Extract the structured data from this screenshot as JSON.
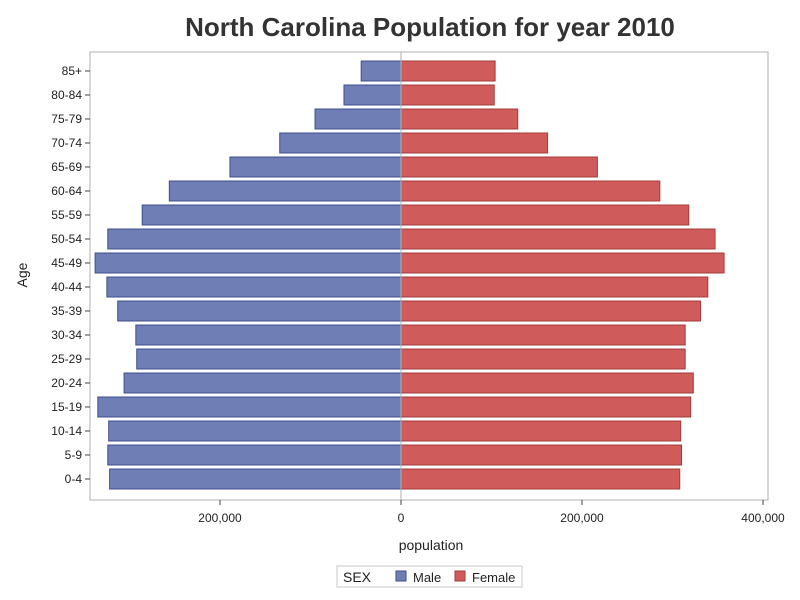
{
  "chart_data": {
    "type": "bar",
    "orientation": "horizontal-butterfly",
    "title": "North Carolina Population for year 2010",
    "xlabel": "population",
    "ylabel": "Age",
    "categories": [
      "0-4",
      "5-9",
      "10-14",
      "15-19",
      "20-24",
      "25-29",
      "30-34",
      "35-39",
      "40-44",
      "45-49",
      "50-54",
      "55-59",
      "60-64",
      "65-69",
      "70-74",
      "75-79",
      "80-84",
      "85+"
    ],
    "series": [
      {
        "name": "Male",
        "color": "#6f7fb6",
        "values": [
          322000,
          324000,
          323000,
          335000,
          306000,
          292000,
          293000,
          313000,
          325000,
          338000,
          324000,
          286000,
          256000,
          189000,
          134000,
          95000,
          63000,
          44000
        ]
      },
      {
        "name": "Female",
        "color": "#d05b5b",
        "values": [
          308000,
          310000,
          309000,
          320000,
          323000,
          314000,
          314000,
          331000,
          339000,
          357000,
          347000,
          318000,
          286000,
          217000,
          162000,
          129000,
          103000,
          104000
        ]
      }
    ],
    "xticks": [
      -200000,
      0,
      200000,
      400000
    ],
    "xtick_labels": [
      "200,000",
      "0",
      "200,000",
      "400,000"
    ],
    "xlim": [
      -342000,
      406000
    ],
    "grid": false,
    "legend": {
      "title": "SEX",
      "entries": [
        "Male",
        "Female"
      ],
      "placement": "bottom"
    }
  }
}
